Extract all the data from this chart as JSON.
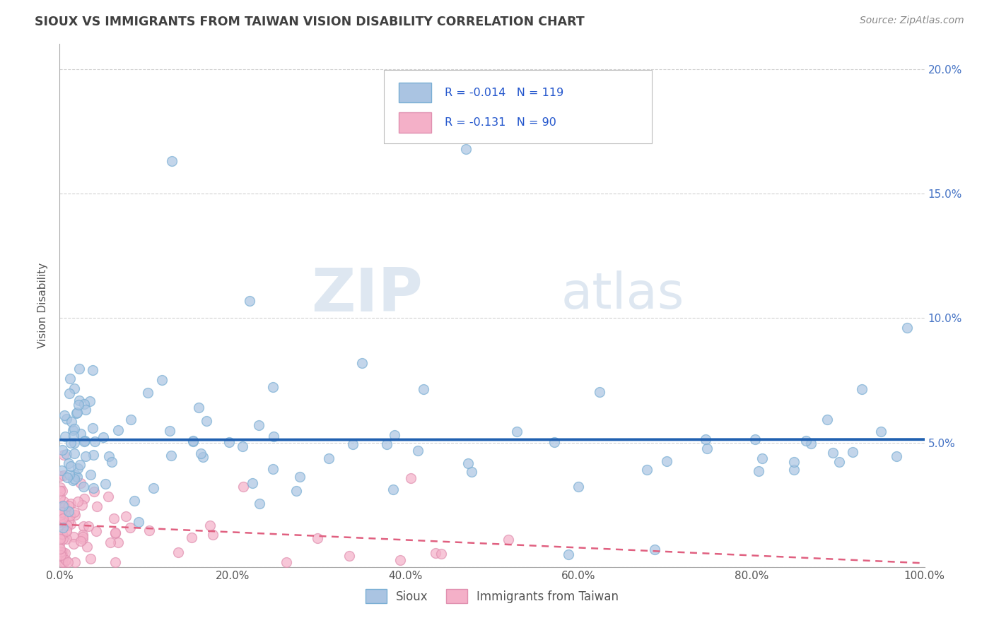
{
  "title": "SIOUX VS IMMIGRANTS FROM TAIWAN VISION DISABILITY CORRELATION CHART",
  "source": "Source: ZipAtlas.com",
  "ylabel": "Vision Disability",
  "watermark_zip": "ZIP",
  "watermark_atlas": "atlas",
  "legend_entries": [
    {
      "label": "Sioux",
      "color": "#aac4e2",
      "edge": "#7aafd4",
      "R": "-0.014",
      "N": "119"
    },
    {
      "label": "Immigrants from Taiwan",
      "color": "#f4b0c8",
      "edge": "#e090b0",
      "R": "-0.131",
      "N": "90"
    }
  ],
  "sioux_line_color": "#2060b0",
  "taiwan_line_color": "#e06080",
  "bg_color": "#ffffff",
  "grid_color": "#cccccc",
  "title_color": "#404040",
  "source_color": "#888888",
  "xlim": [
    0.0,
    1.0
  ],
  "ylim": [
    0.0,
    0.21
  ],
  "xticks": [
    0.0,
    0.2,
    0.4,
    0.6,
    0.8,
    1.0
  ],
  "xtick_labels": [
    "0.0%",
    "20.0%",
    "40.0%",
    "60.0%",
    "80.0%",
    "100.0%"
  ],
  "yticks": [
    0.0,
    0.05,
    0.1,
    0.15,
    0.2
  ],
  "ytick_labels": [
    "",
    "5.0%",
    "10.0%",
    "15.0%",
    "20.0%"
  ],
  "marker_size": 100
}
